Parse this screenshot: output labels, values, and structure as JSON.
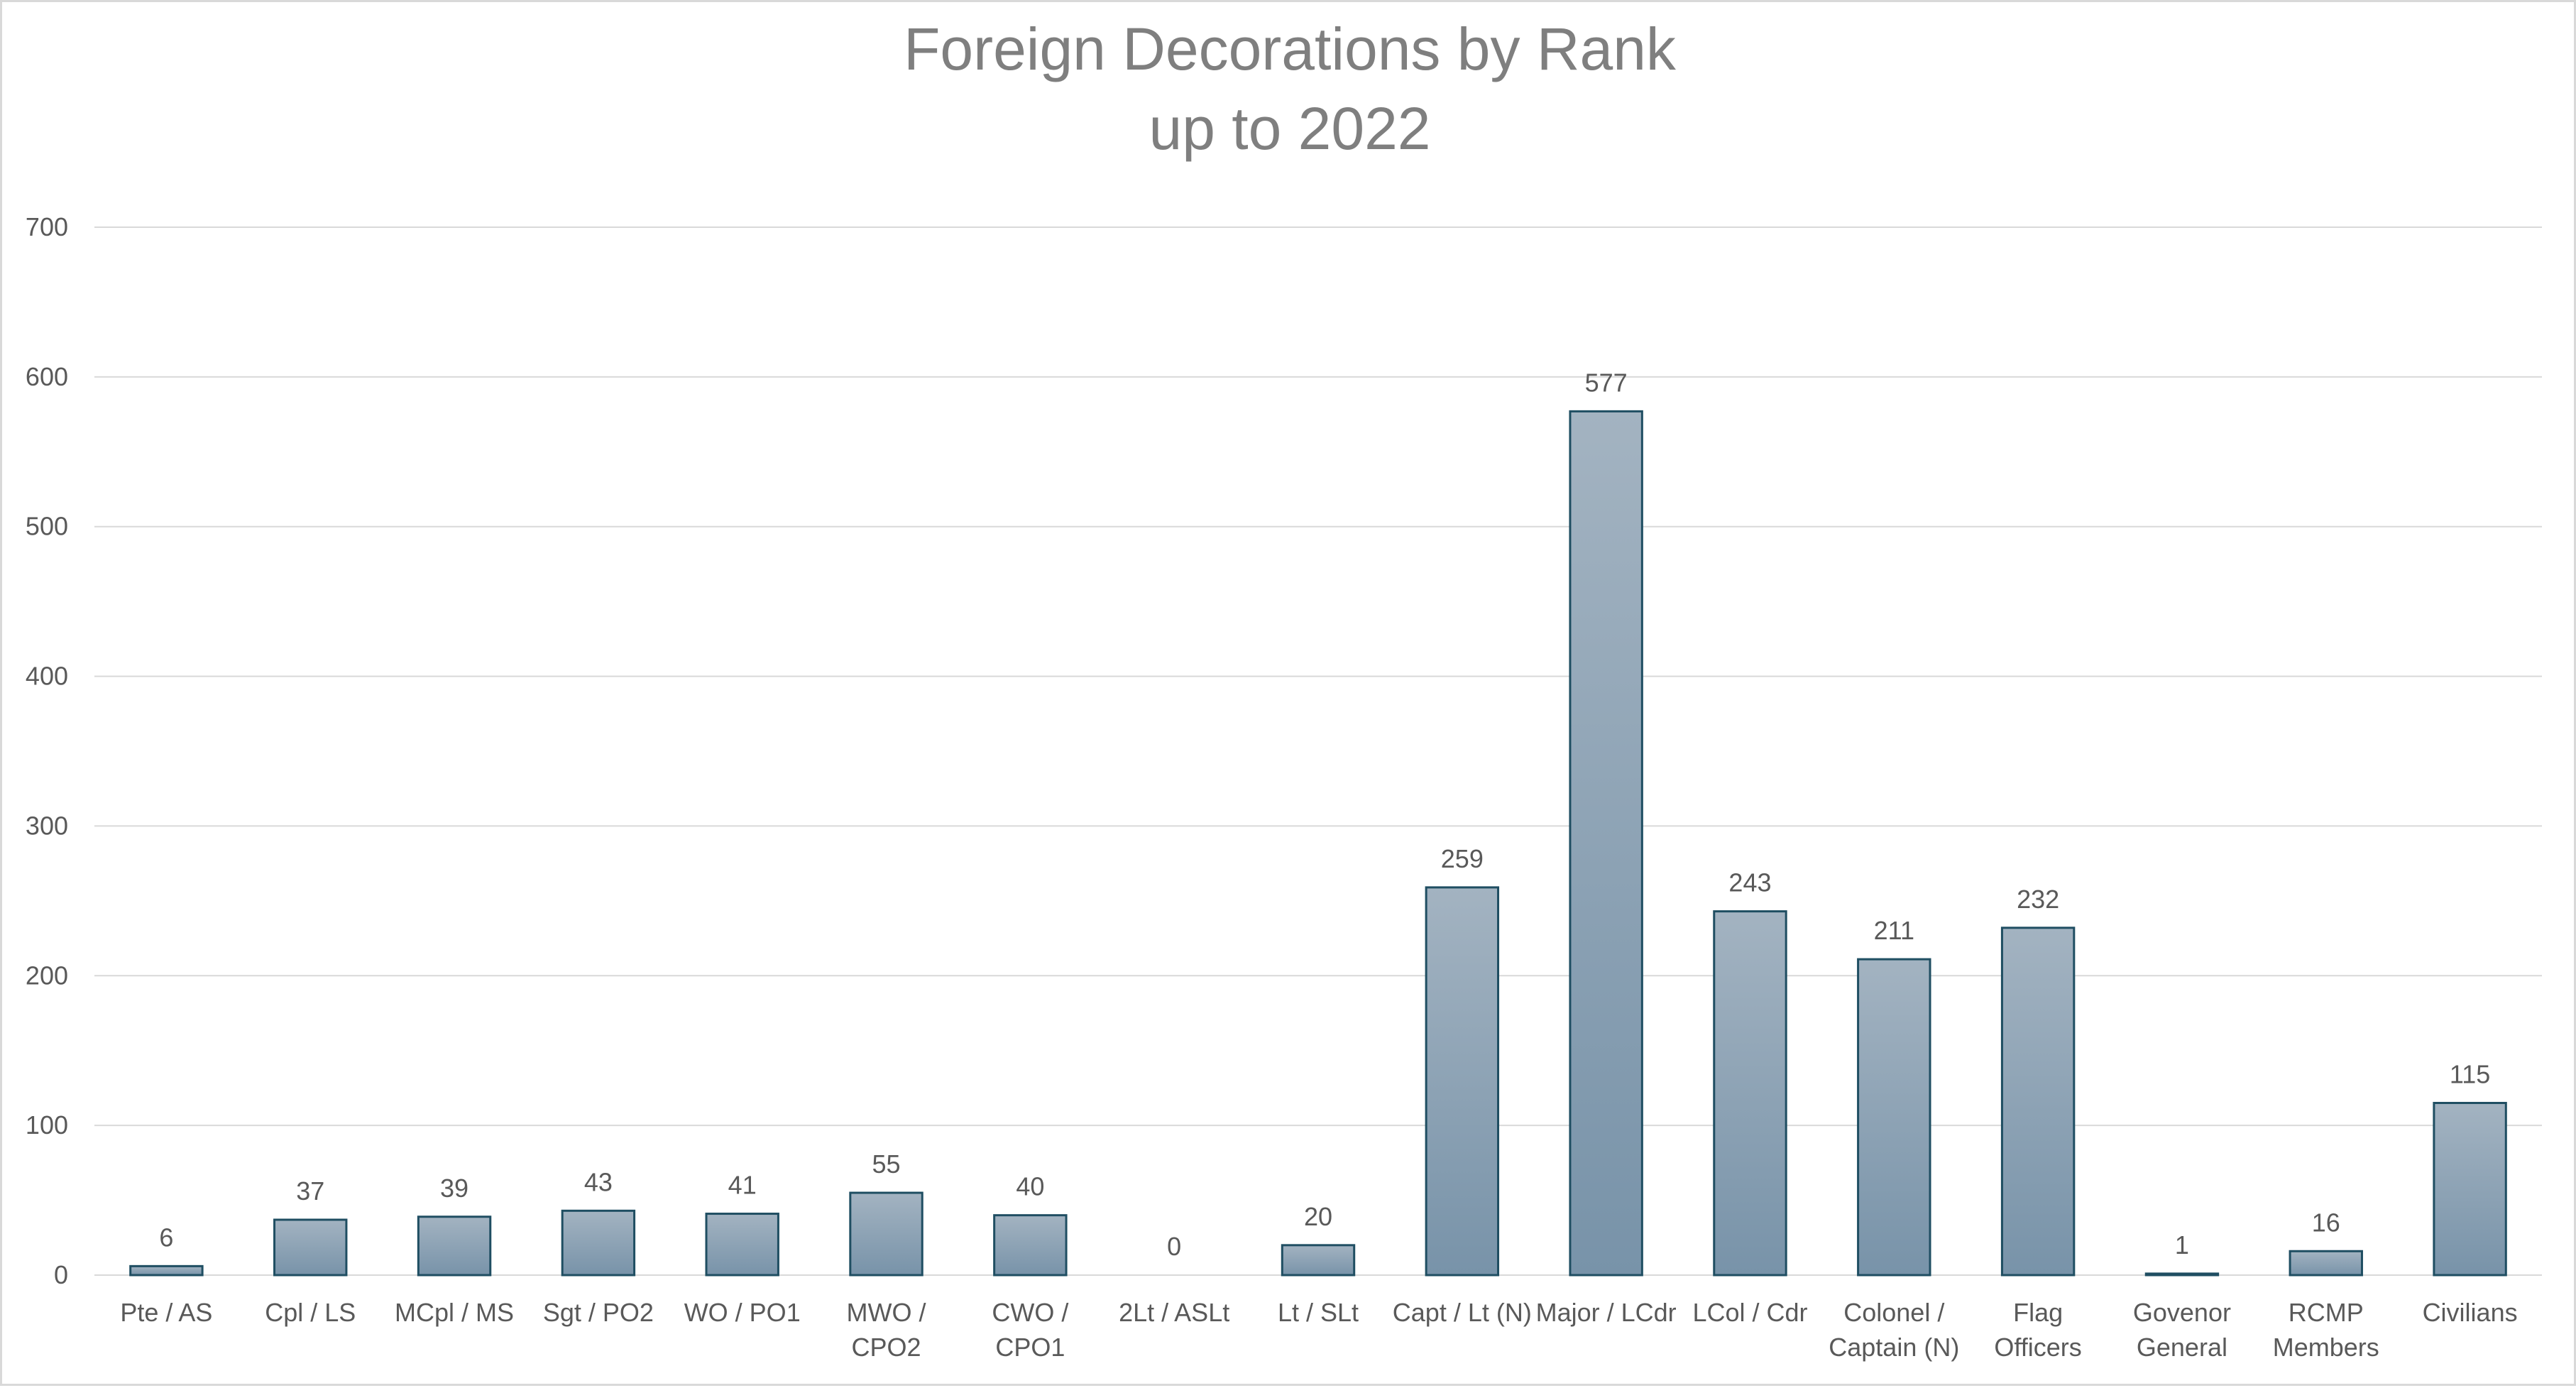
{
  "chart_data": {
    "type": "bar",
    "title": [
      "Foreign Decorations by Rank",
      "up to 2022"
    ],
    "xlabel": "",
    "ylabel": "",
    "ylim": [
      0,
      700
    ],
    "yticks": [
      0,
      100,
      200,
      300,
      400,
      500,
      600,
      700
    ],
    "grid": true,
    "legend": "none",
    "categories": [
      [
        "Pte / AS"
      ],
      [
        "Cpl / LS"
      ],
      [
        "MCpl / MS"
      ],
      [
        "Sgt / PO2"
      ],
      [
        "WO / PO1"
      ],
      [
        "MWO /",
        "CPO2"
      ],
      [
        "CWO /",
        "CPO1"
      ],
      [
        "2Lt / ASLt"
      ],
      [
        "Lt / SLt"
      ],
      [
        "Capt / Lt (N)"
      ],
      [
        "Major / LCdr"
      ],
      [
        "LCol / Cdr"
      ],
      [
        "Colonel /",
        "Captain (N)"
      ],
      [
        "Flag",
        "Officers"
      ],
      [
        "Govenor",
        "General"
      ],
      [
        "RCMP",
        "Members"
      ],
      [
        "Civilians"
      ]
    ],
    "values": [
      6,
      37,
      39,
      43,
      41,
      55,
      40,
      0,
      20,
      259,
      577,
      243,
      211,
      232,
      1,
      16,
      115
    ],
    "colors": {
      "bar_top": "#a3b3c1",
      "bar_bottom": "#7893a9",
      "bar_border": "#1f4e62",
      "grid": "#d9d9d9",
      "text": "#595959",
      "title": "#7f7f7f"
    }
  }
}
